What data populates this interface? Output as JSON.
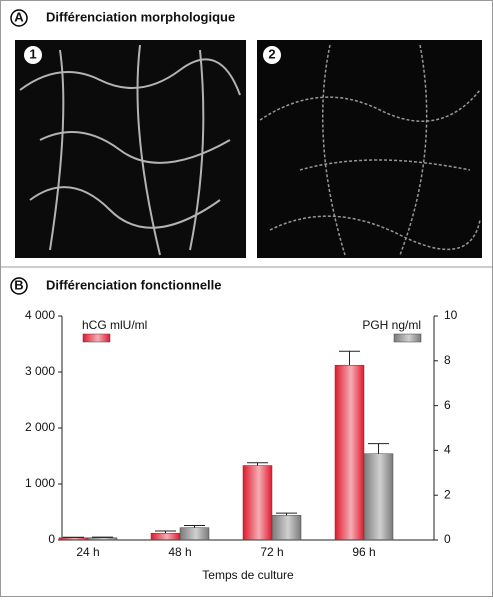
{
  "panel_a": {
    "letter": "A",
    "title": "Différenciation morphologique",
    "images": [
      "1",
      "2"
    ]
  },
  "chart_data": {
    "type": "bar",
    "letter": "B",
    "title": "Différenciation fonctionnelle",
    "x_label": "Temps de culture",
    "categories": [
      "24 h",
      "48 h",
      "72 h",
      "96 h"
    ],
    "series": [
      {
        "name": "hCG mlU/ml",
        "color": "#e0192d",
        "values": [
          40,
          120,
          1330,
          3120
        ],
        "error": [
          10,
          40,
          50,
          250
        ]
      },
      {
        "name": "PGH ng/ml",
        "color": "#7a7a7a",
        "axis": "y2",
        "values": [
          0.1,
          0.55,
          1.1,
          3.85
        ],
        "error": [
          0.03,
          0.1,
          0.1,
          0.45
        ]
      }
    ],
    "ylim": [
      0,
      4000
    ],
    "yticks": [
      0,
      {
        "value": 1000,
        "label": "1 000"
      },
      {
        "value": 2000,
        "label": "2 000"
      },
      {
        "value": 3000,
        "label": "3 000"
      },
      {
        "value": 4000,
        "label": "4 000"
      }
    ],
    "y2lim": [
      0,
      10
    ],
    "y2ticks": [
      0,
      2,
      4,
      6,
      8,
      10
    ]
  }
}
